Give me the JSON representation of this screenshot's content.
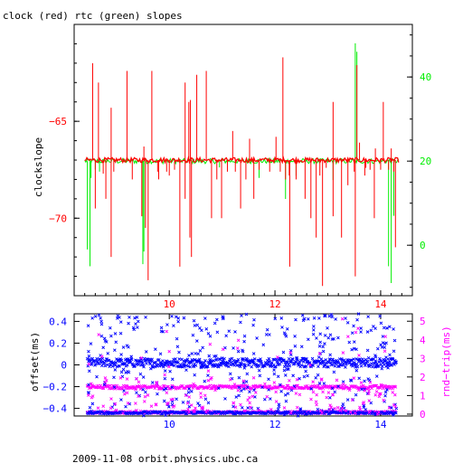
{
  "chart_data": [
    {
      "type": "line",
      "title": "clock (red) rtc (green) slopes",
      "ylabel": "clockslope",
      "xlim": [
        8.2,
        14.6
      ],
      "ylim_left": [
        -74,
        -60
      ],
      "ylim_right": [
        -12,
        52.5
      ],
      "x_ticks": [
        "10",
        "12",
        "14"
      ],
      "y_ticks_left": [
        "−65",
        "−70"
      ],
      "y_ticks_right": [
        "40",
        "20",
        "0"
      ],
      "colors": {
        "clock": "#ff0000",
        "rtc": "#00ee00",
        "axis": "#000000"
      },
      "series": [
        {
          "name": "clock",
          "baseline": -67.0,
          "spikes": [
            [
              8.55,
              -62
            ],
            [
              8.6,
              -69.5
            ],
            [
              8.66,
              -63
            ],
            [
              8.75,
              -67.7
            ],
            [
              8.8,
              -69.0
            ],
            [
              8.9,
              -72.0
            ],
            [
              8.9,
              -64.3
            ],
            [
              8.95,
              -67.6
            ],
            [
              9.2,
              -62.4
            ],
            [
              9.3,
              -68.0
            ],
            [
              9.48,
              -69.9
            ],
            [
              9.52,
              -66.3
            ],
            [
              9.55,
              -70.5
            ],
            [
              9.6,
              -73.2
            ],
            [
              9.67,
              -62.4
            ],
            [
              9.78,
              -67.6
            ],
            [
              9.8,
              -68.0
            ],
            [
              9.95,
              -67.6
            ],
            [
              10.0,
              -67.8
            ],
            [
              10.1,
              -67.5
            ],
            [
              10.2,
              -72.5
            ],
            [
              10.3,
              -63.0
            ],
            [
              10.3,
              -69.0
            ],
            [
              10.37,
              -64.0
            ],
            [
              10.39,
              -71.0
            ],
            [
              10.4,
              -63.9
            ],
            [
              10.42,
              -72.0
            ],
            [
              10.52,
              -62.6
            ],
            [
              10.7,
              -62.4
            ],
            [
              10.8,
              -70.0
            ],
            [
              10.9,
              -68.0
            ],
            [
              10.99,
              -70.0
            ],
            [
              11.1,
              -67.6
            ],
            [
              11.2,
              -65.5
            ],
            [
              11.25,
              -67.6
            ],
            [
              11.35,
              -69.5
            ],
            [
              11.45,
              -68.0
            ],
            [
              11.52,
              -65.9
            ],
            [
              11.6,
              -69.0
            ],
            [
              11.7,
              -67.5
            ],
            [
              11.9,
              -67.6
            ],
            [
              12.02,
              -65.8
            ],
            [
              12.1,
              -67.6
            ],
            [
              12.15,
              -61.7
            ],
            [
              12.2,
              -68.0
            ],
            [
              12.27,
              -67.8
            ],
            [
              12.28,
              -72.5
            ],
            [
              12.4,
              -68.0
            ],
            [
              12.57,
              -69.0
            ],
            [
              12.68,
              -70.0
            ],
            [
              12.78,
              -71.0
            ],
            [
              12.85,
              -67.8
            ],
            [
              12.9,
              -73.5
            ],
            [
              12.97,
              -67.4
            ],
            [
              13.1,
              -69.9
            ],
            [
              13.1,
              -64.0
            ],
            [
              13.26,
              -71.0
            ],
            [
              13.38,
              -68.3
            ],
            [
              13.5,
              -67.6
            ],
            [
              13.52,
              -73.0
            ],
            [
              13.55,
              -62.1
            ],
            [
              13.6,
              -66.1
            ],
            [
              13.7,
              -67.8
            ],
            [
              13.72,
              -67.4
            ],
            [
              13.8,
              -67.5
            ],
            [
              13.88,
              -70.0
            ],
            [
              13.9,
              -66.4
            ],
            [
              14.0,
              -67.5
            ],
            [
              14.05,
              -64.0
            ],
            [
              14.15,
              -67.5
            ],
            [
              14.2,
              -66.4
            ],
            [
              14.25,
              -67.6
            ],
            [
              14.28,
              -71.5
            ]
          ]
        },
        {
          "name": "rtc",
          "baseline": 20.0,
          "spikes": [
            [
              8.45,
              -1.0
            ],
            [
              8.5,
              -5.0
            ],
            [
              8.52,
              16.0
            ],
            [
              8.6,
              18.0
            ],
            [
              8.68,
              17.5
            ],
            [
              9.5,
              -4.5
            ],
            [
              9.52,
              -1.5
            ],
            [
              10.95,
              18.5
            ],
            [
              11.7,
              16.0
            ],
            [
              12.2,
              11.0
            ],
            [
              12.4,
              16.5
            ],
            [
              13.1,
              15.5
            ],
            [
              13.52,
              48.0
            ],
            [
              13.55,
              46.0
            ],
            [
              14.15,
              -5.0
            ],
            [
              14.2,
              -9.0
            ],
            [
              14.25,
              7.0
            ]
          ]
        }
      ]
    },
    {
      "type": "scatter",
      "ylabel_left": "offset(ms)",
      "ylabel_right": "rnd−trip(ms)",
      "xlim": [
        8.2,
        14.6
      ],
      "ylim_left": [
        -0.47,
        0.47
      ],
      "ylim_right": [
        -0.1,
        5.4
      ],
      "x_ticks": [
        "10",
        "12",
        "14"
      ],
      "y_ticks_left": [
        "0.4",
        "0.2",
        "0",
        "−0.2",
        "−0.4"
      ],
      "y_ticks_right": [
        "5",
        "4",
        "3",
        "2",
        "1",
        "0"
      ],
      "colors": {
        "offset": "#0000ff",
        "round_trip": "#ff00ff",
        "axis": "#000000"
      },
      "series": [
        {
          "name": "offset",
          "band_center": 0.02,
          "band_halfwidth": 0.04,
          "outlier_range": [
            -0.47,
            0.47
          ]
        },
        {
          "name": "rnd−trip",
          "bands": [
            1.45,
            0.1
          ],
          "outlier_range": [
            0,
            5.4
          ]
        }
      ]
    }
  ],
  "footer": "2009-11-08 orbit.physics.ubc.ca"
}
